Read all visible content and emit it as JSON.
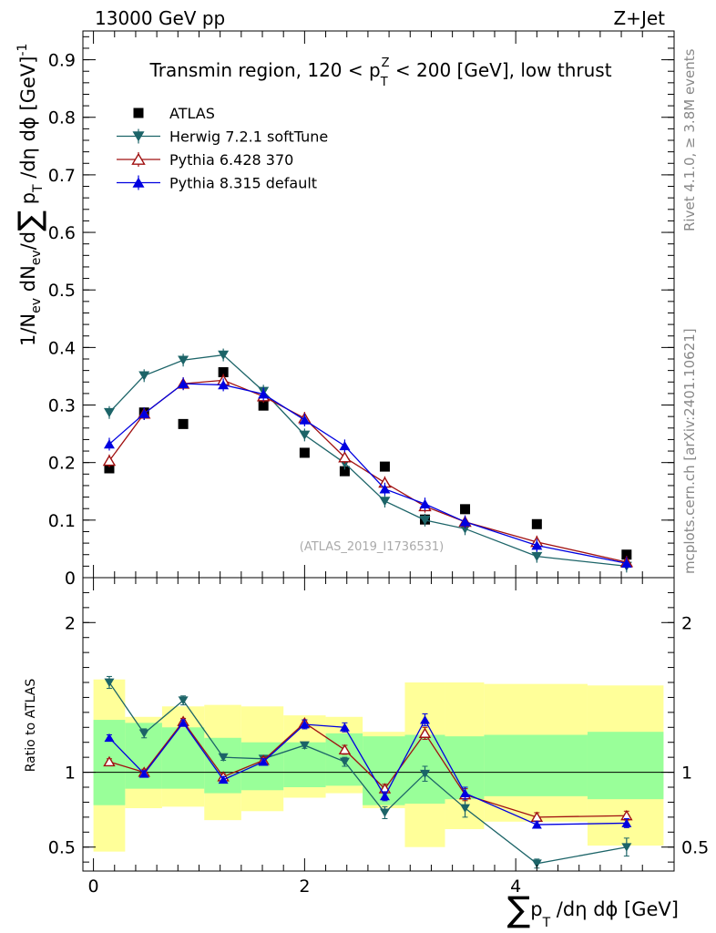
{
  "header": {
    "left": "13000 GeV pp",
    "right": "Z+Jet"
  },
  "side_labels": {
    "rivet": "Rivet 4.1.0, ≥ 3.8M events",
    "mcplots": "mcplots.cern.ch [arXiv:2401.10621]"
  },
  "colors": {
    "atlas": "#000000",
    "herwig": "#1c6468",
    "pythia6": "#a01010",
    "pythia8": "#0000e0",
    "band_inner": "#99ff99",
    "band_outer": "#ffff99"
  },
  "chart_data": [
    {
      "type": "scatter",
      "title": "Transmin region, 120 < p_T^Z < 200 [GeV], low thrust",
      "title_parts": {
        "a": "Transmin region, 120 < p",
        "sub": "T",
        "sup": "Z",
        "b": " < 200 [GeV], low thrust"
      },
      "ylabel": "1/N_ev dN_ev/d∑ p_T /dη dϕ [GeV]^-1",
      "ylim": [
        0,
        0.95
      ],
      "yticks": [
        0,
        0.1,
        0.2,
        0.3,
        0.4,
        0.5,
        0.6,
        0.7,
        0.8,
        0.9
      ],
      "ytick_labels": [
        "0",
        "0.1",
        "0.2",
        "0.3",
        "0.4",
        "0.5",
        "0.6",
        "0.7",
        "0.8",
        "0.9"
      ],
      "xlim": [
        -0.1,
        5.5
      ],
      "watermark": "(ATLAS_2019_I1736531)",
      "legend": [
        "ATLAS",
        "Herwig 7.2.1 softTune",
        "Pythia 6.428 370",
        "Pythia 8.315 default"
      ],
      "x": [
        0.15,
        0.48,
        0.85,
        1.23,
        1.61,
        2.0,
        2.38,
        2.76,
        3.14,
        3.52,
        4.2,
        5.05
      ],
      "series": [
        {
          "name": "ATLAS",
          "marker": "square",
          "values": [
            0.19,
            0.287,
            0.267,
            0.357,
            0.299,
            0.217,
            0.185,
            0.193,
            0.101,
            0.119,
            0.093,
            0.04
          ]
        },
        {
          "name": "Herwig 7.2.1 softTune",
          "marker": "triangle-down",
          "values": [
            0.287,
            0.351,
            0.378,
            0.387,
            0.324,
            0.248,
            0.199,
            0.133,
            0.1,
            0.085,
            0.037,
            0.02
          ]
        },
        {
          "name": "Pythia 6.428 370",
          "marker": "triangle-up-open",
          "values": [
            0.203,
            0.285,
            0.337,
            0.343,
            0.315,
            0.277,
            0.209,
            0.165,
            0.124,
            0.097,
            0.062,
            0.027
          ]
        },
        {
          "name": "Pythia 8.315 default",
          "marker": "triangle-up",
          "values": [
            0.232,
            0.285,
            0.337,
            0.335,
            0.319,
            0.274,
            0.229,
            0.154,
            0.128,
            0.097,
            0.056,
            0.025
          ]
        }
      ]
    },
    {
      "type": "line",
      "ylabel": "Ratio to ATLAS",
      "xlabel": "∑ p_T /dη dϕ [GeV]",
      "xlabel_parts": {
        "sigma": "∑",
        "p": "p",
        "sub": "T",
        "rest": " /dη dϕ [GeV]"
      },
      "ylim": [
        0.34,
        2.3
      ],
      "yticks": [
        0.5,
        1,
        2
      ],
      "ytick_labels": [
        "0.5",
        "1",
        "2"
      ],
      "xticks": [
        0,
        2,
        4
      ],
      "xtick_labels": [
        "0",
        "2",
        "4"
      ],
      "xlim": [
        -0.1,
        5.5
      ],
      "bin_edges": [
        0.0,
        0.3,
        0.65,
        1.05,
        1.4,
        1.8,
        2.2,
        2.55,
        2.95,
        3.33,
        3.7,
        4.68,
        5.4
      ],
      "band_inner": [
        [
          0.78,
          1.35
        ],
        [
          0.89,
          1.33
        ],
        [
          0.89,
          1.3
        ],
        [
          0.86,
          1.23
        ],
        [
          0.88,
          1.2
        ],
        [
          0.9,
          1.2
        ],
        [
          0.91,
          1.26
        ],
        [
          0.78,
          1.24
        ],
        [
          0.79,
          1.25
        ],
        [
          0.82,
          1.24
        ],
        [
          0.84,
          1.25
        ],
        [
          0.82,
          1.27
        ]
      ],
      "band_outer": [
        [
          0.47,
          1.62
        ],
        [
          0.76,
          1.37
        ],
        [
          0.77,
          1.44
        ],
        [
          0.68,
          1.45
        ],
        [
          0.74,
          1.44
        ],
        [
          0.83,
          1.38
        ],
        [
          0.86,
          1.37
        ],
        [
          0.76,
          1.27
        ],
        [
          0.5,
          1.6
        ],
        [
          0.62,
          1.6
        ],
        [
          0.67,
          1.59
        ],
        [
          0.51,
          1.58
        ]
      ],
      "series": [
        {
          "name": "Herwig 7.2.1 softTune",
          "values": [
            1.6,
            1.26,
            1.48,
            1.1,
            1.09,
            1.18,
            1.07,
            0.73,
            0.99,
            0.76,
            0.39,
            0.5
          ],
          "errors": [
            0.04,
            0.03,
            0.03,
            0.02,
            0.02,
            0.02,
            0.03,
            0.04,
            0.05,
            0.06,
            0.03,
            0.06
          ]
        },
        {
          "name": "Pythia 6.428 370",
          "values": [
            1.07,
            1.0,
            1.34,
            0.97,
            1.08,
            1.33,
            1.15,
            0.89,
            1.26,
            0.85,
            0.7,
            0.71
          ],
          "errors": [
            0.02,
            0.02,
            0.02,
            0.02,
            0.02,
            0.02,
            0.03,
            0.03,
            0.04,
            0.04,
            0.03,
            0.03
          ]
        },
        {
          "name": "Pythia 8.315 default",
          "values": [
            1.23,
            0.99,
            1.33,
            0.95,
            1.07,
            1.32,
            1.3,
            0.84,
            1.35,
            0.86,
            0.65,
            0.66
          ],
          "errors": [
            0.02,
            0.02,
            0.02,
            0.02,
            0.02,
            0.03,
            0.03,
            0.03,
            0.04,
            0.04,
            0.02,
            0.03
          ]
        }
      ]
    }
  ]
}
